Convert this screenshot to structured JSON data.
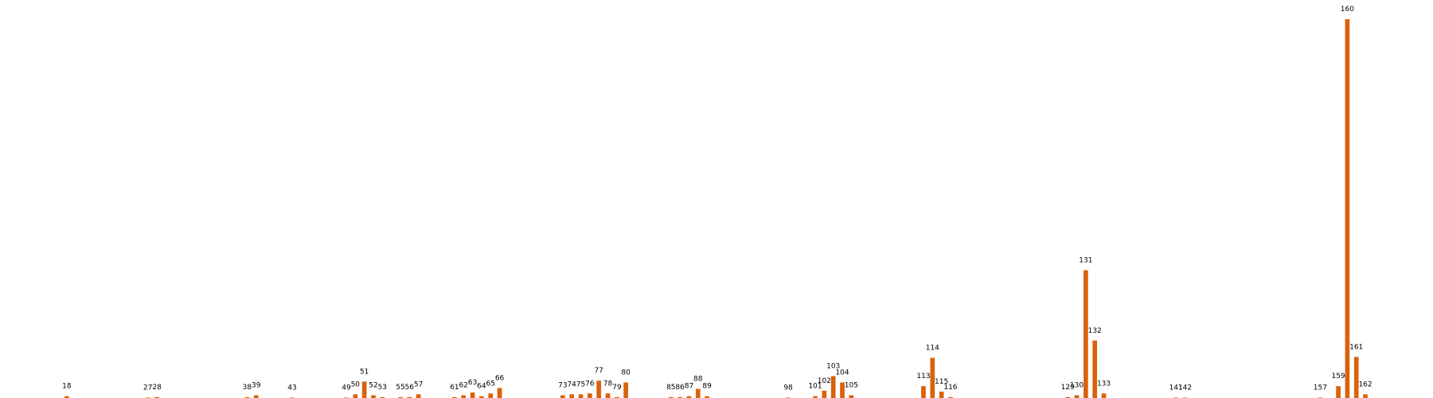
{
  "chart_data": {
    "type": "bar",
    "x": [
      18,
      27,
      28,
      38,
      39,
      43,
      49,
      50,
      51,
      52,
      53,
      55,
      56,
      57,
      61,
      62,
      63,
      64,
      65,
      66,
      73,
      74,
      75,
      76,
      77,
      78,
      79,
      80,
      85,
      86,
      87,
      88,
      89,
      98,
      101,
      102,
      103,
      104,
      105,
      113,
      114,
      115,
      116,
      129,
      130,
      131,
      132,
      133,
      141,
      142,
      157,
      159,
      160,
      161,
      162
    ],
    "values": [
      2,
      0.5,
      1,
      1,
      3,
      0.5,
      0.5,
      4,
      18,
      3,
      1,
      1,
      1,
      4,
      1,
      3,
      6,
      2,
      5,
      11,
      3,
      4,
      4,
      5,
      19,
      5,
      1,
      17,
      1,
      1,
      2,
      10,
      2,
      0.5,
      2,
      8,
      24,
      17,
      3,
      13,
      44,
      7,
      1,
      1,
      3,
      140,
      63,
      5,
      0.5,
      0.5,
      0.5,
      13,
      415,
      45,
      4
    ],
    "color": "#d9620b",
    "xlim": [
      10.6,
      169.5
    ],
    "ylim": [
      0,
      436
    ]
  }
}
